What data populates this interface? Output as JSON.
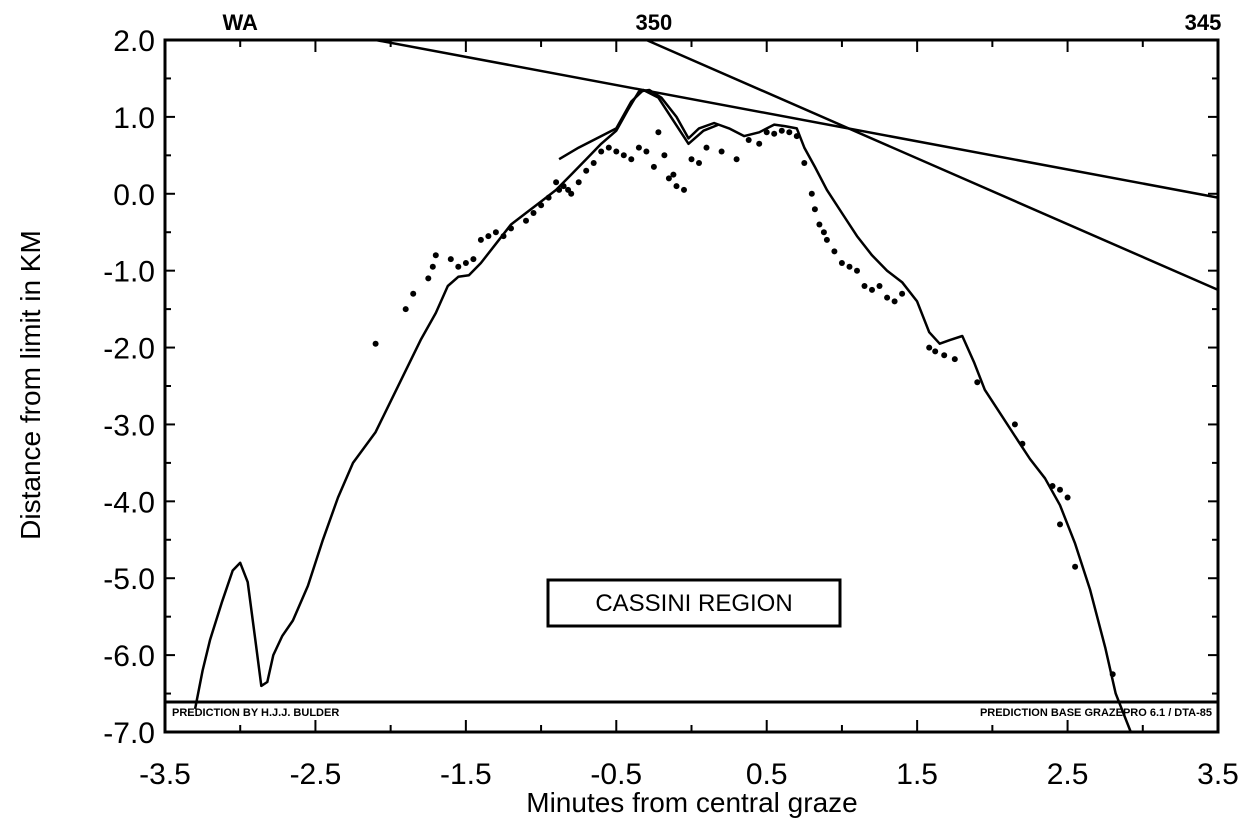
{
  "chart_data": {
    "type": "scatter",
    "xlabel": "Minutes from central graze",
    "ylabel": "Distance from limit in KM",
    "xlim": [
      -3.5,
      3.5
    ],
    "ylim": [
      -7.0,
      2.0
    ],
    "x_ticks": [
      "-3.5",
      "-2.5",
      "-1.5",
      "-0.5",
      "0.5",
      "1.5",
      "2.5",
      "3.5"
    ],
    "y_ticks": [
      "2.0",
      "1.0",
      "0.0",
      "-1.0",
      "-2.0",
      "-3.0",
      "-4.0",
      "-5.0",
      "-6.0",
      "-7.0"
    ],
    "top_axis_labels": [
      {
        "text": "WA",
        "x": -3.0
      },
      {
        "text": "350",
        "x": -0.25
      },
      {
        "text": "345",
        "x": 3.4
      }
    ],
    "annotation": "CASSINI REGION",
    "footer_left": "PREDICTION BY H.J.J. BULDER",
    "footer_right": "PREDICTION BASE GRAZEPRO 6.1 / DTA-85",
    "grid": false,
    "series": [
      {
        "style": "line",
        "values": [
          [
            -3.3,
            -6.7
          ],
          [
            -3.25,
            -6.2
          ],
          [
            -3.2,
            -5.8
          ],
          [
            -3.12,
            -5.3
          ],
          [
            -3.05,
            -4.9
          ],
          [
            -3.0,
            -4.8
          ],
          [
            -2.95,
            -5.05
          ],
          [
            -2.9,
            -5.8
          ],
          [
            -2.86,
            -6.4
          ],
          [
            -2.82,
            -6.35
          ],
          [
            -2.78,
            -6.0
          ],
          [
            -2.72,
            -5.75
          ],
          [
            -2.65,
            -5.55
          ],
          [
            -2.55,
            -5.1
          ],
          [
            -2.45,
            -4.5
          ],
          [
            -2.35,
            -3.95
          ],
          [
            -2.25,
            -3.5
          ],
          [
            -2.1,
            -3.1
          ],
          [
            -2.0,
            -2.7
          ],
          [
            -1.9,
            -2.3
          ],
          [
            -1.8,
            -1.9
          ],
          [
            -1.7,
            -1.55
          ],
          [
            -1.62,
            -1.2
          ],
          [
            -1.55,
            -1.08
          ],
          [
            -1.48,
            -1.06
          ],
          [
            -1.4,
            -0.9
          ],
          [
            -1.3,
            -0.65
          ],
          [
            -1.2,
            -0.4
          ],
          [
            -1.1,
            -0.25
          ],
          [
            -1.0,
            -0.1
          ],
          [
            -0.9,
            0.05
          ],
          [
            -0.8,
            0.25
          ],
          [
            -0.7,
            0.45
          ],
          [
            -0.6,
            0.65
          ],
          [
            -0.5,
            0.82
          ],
          [
            -0.42,
            1.1
          ],
          [
            -0.35,
            1.33
          ],
          [
            -0.28,
            1.35
          ],
          [
            -0.2,
            1.25
          ],
          [
            -0.1,
            1.0
          ],
          [
            -0.02,
            0.72
          ],
          [
            0.05,
            0.85
          ],
          [
            0.15,
            0.92
          ],
          [
            0.25,
            0.85
          ],
          [
            0.35,
            0.75
          ],
          [
            0.45,
            0.8
          ],
          [
            0.55,
            0.9
          ],
          [
            0.62,
            0.88
          ],
          [
            0.7,
            0.85
          ],
          [
            0.75,
            0.6
          ],
          [
            0.82,
            0.35
          ],
          [
            0.9,
            0.05
          ],
          [
            1.0,
            -0.25
          ],
          [
            1.1,
            -0.55
          ],
          [
            1.2,
            -0.8
          ],
          [
            1.3,
            -1.0
          ],
          [
            1.4,
            -1.15
          ],
          [
            1.5,
            -1.4
          ],
          [
            1.58,
            -1.8
          ],
          [
            1.65,
            -1.95
          ],
          [
            1.72,
            -1.9
          ],
          [
            1.8,
            -1.85
          ],
          [
            1.88,
            -2.2
          ],
          [
            1.95,
            -2.55
          ],
          [
            2.05,
            -2.85
          ],
          [
            2.15,
            -3.15
          ],
          [
            2.25,
            -3.45
          ],
          [
            2.35,
            -3.7
          ],
          [
            2.45,
            -4.05
          ],
          [
            2.55,
            -4.55
          ],
          [
            2.65,
            -5.15
          ],
          [
            2.75,
            -5.9
          ],
          [
            2.82,
            -6.5
          ],
          [
            2.88,
            -6.8
          ],
          [
            2.92,
            -7.0
          ]
        ]
      },
      {
        "style": "line",
        "values": [
          [
            -0.88,
            0.45
          ],
          [
            -0.75,
            0.6
          ],
          [
            -0.6,
            0.75
          ],
          [
            -0.5,
            0.85
          ],
          [
            -0.4,
            1.2
          ],
          [
            -0.32,
            1.35
          ],
          [
            -0.22,
            1.25
          ],
          [
            -0.12,
            0.95
          ],
          [
            -0.02,
            0.65
          ],
          [
            0.08,
            0.82
          ],
          [
            0.18,
            0.9
          ]
        ]
      },
      {
        "style": "line",
        "values": [
          [
            -2.1,
            2.0
          ],
          [
            3.5,
            -0.05
          ]
        ]
      },
      {
        "style": "line",
        "values": [
          [
            -0.3,
            2.0
          ],
          [
            3.5,
            -1.25
          ]
        ]
      },
      {
        "style": "points",
        "values": [
          [
            -2.1,
            -1.95
          ],
          [
            -1.9,
            -1.5
          ],
          [
            -1.85,
            -1.3
          ],
          [
            -1.75,
            -1.1
          ],
          [
            -1.72,
            -0.95
          ],
          [
            -1.7,
            -0.8
          ],
          [
            -1.6,
            -0.85
          ],
          [
            -1.55,
            -0.95
          ],
          [
            -1.5,
            -0.9
          ],
          [
            -1.45,
            -0.85
          ],
          [
            -1.4,
            -0.6
          ],
          [
            -1.35,
            -0.55
          ],
          [
            -1.3,
            -0.5
          ],
          [
            -1.25,
            -0.55
          ],
          [
            -1.2,
            -0.45
          ],
          [
            -1.1,
            -0.35
          ],
          [
            -1.05,
            -0.25
          ],
          [
            -1.0,
            -0.15
          ],
          [
            -0.95,
            -0.05
          ],
          [
            -0.9,
            0.15
          ],
          [
            -0.88,
            0.05
          ],
          [
            -0.85,
            0.1
          ],
          [
            -0.82,
            0.05
          ],
          [
            -0.8,
            0.0
          ],
          [
            -0.75,
            0.15
          ],
          [
            -0.7,
            0.3
          ],
          [
            -0.65,
            0.4
          ],
          [
            -0.6,
            0.55
          ],
          [
            -0.55,
            0.6
          ],
          [
            -0.5,
            0.55
          ],
          [
            -0.45,
            0.5
          ],
          [
            -0.4,
            0.45
          ],
          [
            -0.35,
            0.6
          ],
          [
            -0.3,
            0.55
          ],
          [
            -0.25,
            0.35
          ],
          [
            -0.22,
            0.8
          ],
          [
            -0.18,
            0.5
          ],
          [
            -0.15,
            0.2
          ],
          [
            -0.12,
            0.25
          ],
          [
            -0.1,
            0.1
          ],
          [
            -0.05,
            0.05
          ],
          [
            0.0,
            0.45
          ],
          [
            0.05,
            0.4
          ],
          [
            0.1,
            0.6
          ],
          [
            0.2,
            0.55
          ],
          [
            0.3,
            0.45
          ],
          [
            0.38,
            0.7
          ],
          [
            0.45,
            0.65
          ],
          [
            0.5,
            0.8
          ],
          [
            0.55,
            0.78
          ],
          [
            0.6,
            0.82
          ],
          [
            0.65,
            0.8
          ],
          [
            0.7,
            0.75
          ],
          [
            0.75,
            0.4
          ],
          [
            0.8,
            0.0
          ],
          [
            0.82,
            -0.2
          ],
          [
            0.85,
            -0.4
          ],
          [
            0.88,
            -0.5
          ],
          [
            0.9,
            -0.6
          ],
          [
            0.95,
            -0.75
          ],
          [
            1.0,
            -0.9
          ],
          [
            1.05,
            -0.95
          ],
          [
            1.1,
            -1.0
          ],
          [
            1.15,
            -1.2
          ],
          [
            1.2,
            -1.25
          ],
          [
            1.25,
            -1.2
          ],
          [
            1.3,
            -1.35
          ],
          [
            1.35,
            -1.4
          ],
          [
            1.4,
            -1.3
          ],
          [
            1.58,
            -2.0
          ],
          [
            1.62,
            -2.05
          ],
          [
            1.68,
            -2.1
          ],
          [
            1.75,
            -2.15
          ],
          [
            1.9,
            -2.45
          ],
          [
            2.15,
            -3.0
          ],
          [
            2.2,
            -3.25
          ],
          [
            2.4,
            -3.8
          ],
          [
            2.45,
            -3.85
          ],
          [
            2.5,
            -3.95
          ],
          [
            2.45,
            -4.3
          ],
          [
            2.55,
            -4.85
          ],
          [
            2.8,
            -6.25
          ]
        ]
      }
    ]
  }
}
